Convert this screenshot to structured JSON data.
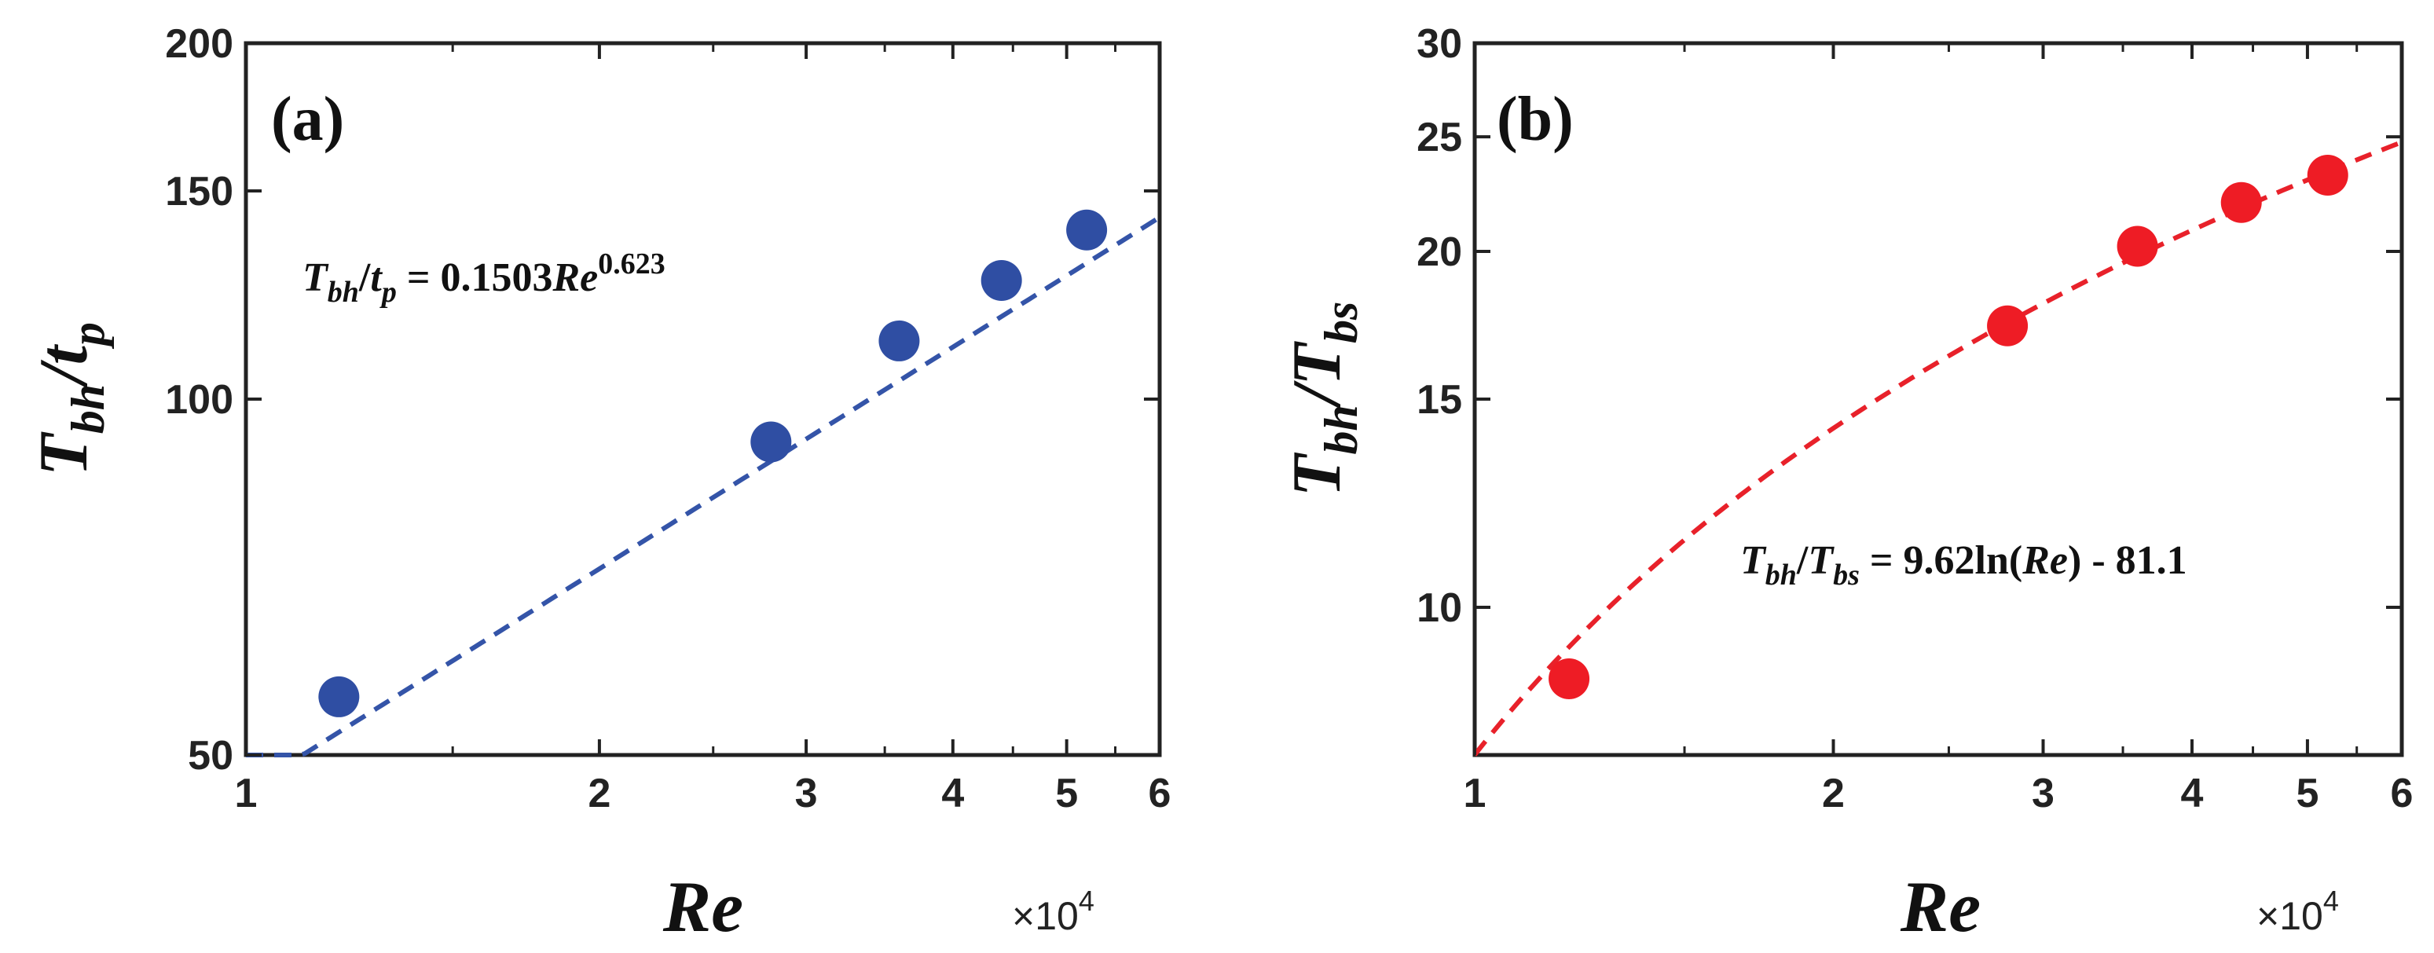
{
  "chart_data": [
    {
      "type": "scatter",
      "panel_label": "(a)",
      "xscale": "log",
      "yscale": "log",
      "xlim": [
        1,
        6
      ],
      "ylim": [
        50,
        200
      ],
      "x_ticks": [
        1,
        2,
        3,
        4,
        5,
        6
      ],
      "x_tick_labels": [
        "1",
        "2",
        "3",
        "4",
        "5",
        "6"
      ],
      "y_ticks": [
        50,
        100,
        150,
        200
      ],
      "y_tick_labels": [
        "50",
        "100",
        "150",
        "200"
      ],
      "x_multiplier": {
        "prefix": "×10",
        "exponent": "4"
      },
      "xlabel": "Re",
      "ylabel": {
        "main": "T",
        "sub1": "bh",
        "slash": "/",
        "main2": "t",
        "sub2": "p"
      },
      "grid": false,
      "marker_color": "#2f4ea3",
      "fit_color": "#3454a8",
      "series": [
        {
          "name": "data",
          "x": [
            1.2,
            2.8,
            3.6,
            4.4,
            5.2
          ],
          "y": [
            56,
            92,
            112,
            126,
            139
          ]
        }
      ],
      "fit": {
        "style": "dashed",
        "model": "power",
        "a": 0.1503,
        "b": 0.623,
        "equation": {
          "lhs_T": "T",
          "lhs_sub1": "bh",
          "lhs_slash": "/",
          "lhs_t": "t",
          "lhs_sub2": "p",
          "eq_coef": " = 0.1503",
          "eq_var": "Re",
          "eq_exp": "0.623"
        }
      }
    },
    {
      "type": "scatter",
      "panel_label": "(b)",
      "xscale": "log",
      "yscale": "log",
      "xlim": [
        1,
        6
      ],
      "ylim": [
        7.5,
        30
      ],
      "x_ticks": [
        1,
        2,
        3,
        4,
        5,
        6
      ],
      "x_tick_labels": [
        "1",
        "2",
        "3",
        "4",
        "5",
        "6"
      ],
      "y_ticks": [
        10,
        15,
        20,
        25,
        30
      ],
      "y_tick_labels": [
        "10",
        "15",
        "20",
        "25",
        "30"
      ],
      "x_multiplier": {
        "prefix": "×10",
        "exponent": "4"
      },
      "xlabel": "Re",
      "ylabel": {
        "main": "T",
        "sub1": "bh",
        "slash": "/",
        "main2": "T",
        "sub2": "bs"
      },
      "grid": false,
      "marker_color": "#ee1c25",
      "fit_color": "#e8212a",
      "series": [
        {
          "name": "data",
          "x": [
            1.2,
            2.8,
            3.6,
            4.4,
            5.2
          ],
          "y": [
            8.7,
            17.3,
            20.2,
            22.0,
            23.2
          ]
        }
      ],
      "fit": {
        "style": "dashed",
        "model": "log",
        "a": 9.62,
        "c": -81.1,
        "equation": {
          "lhs_T": "T",
          "lhs_sub1": "bh",
          "lhs_slash": "/",
          "lhs_t": "T",
          "lhs_sub2": "bs",
          "eq_pre": " = 9.62ln(",
          "eq_var": "Re",
          "eq_post": ") - 81.1"
        }
      }
    }
  ]
}
